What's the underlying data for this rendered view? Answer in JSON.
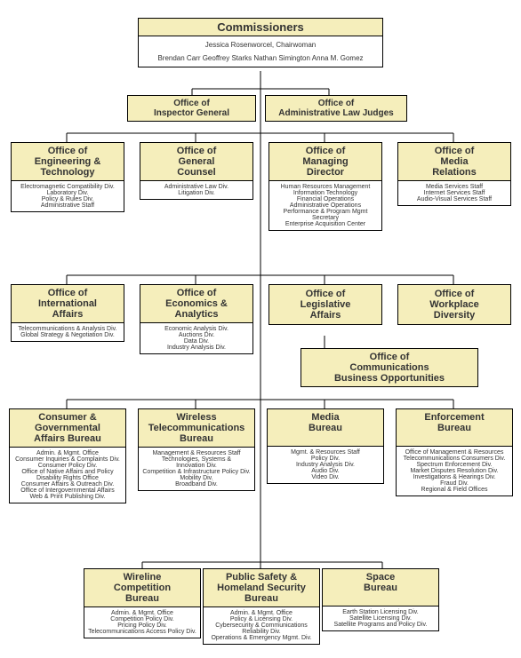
{
  "colors": {
    "header_bg": "#f5eebb",
    "body_bg": "#ffffff",
    "border": "#000000",
    "line": "#000000"
  },
  "commissioners": {
    "title": "Commissioners",
    "chair": "Jessica Rosenworcel, Chairwoman",
    "members": "Brendan Carr   Geoffrey Starks   Nathan Simington   Anna M. Gomez"
  },
  "ig": {
    "title": "Office of\nInspector General"
  },
  "alj": {
    "title": "Office of\nAdministrative Law Judges"
  },
  "row2": {
    "eng": {
      "title": "Office of\nEngineering &\nTechnology",
      "items": [
        "Electromagnetic Compatibility Div.",
        "Laboratory Div.",
        "Policy & Rules Div.",
        "Administrative Staff"
      ]
    },
    "gc": {
      "title": "Office of\nGeneral\nCounsel",
      "items": [
        "Administrative Law Div.",
        "Litigation Div."
      ]
    },
    "md": {
      "title": "Office of\nManaging\nDirector",
      "items": [
        "Human Resources Management",
        "Information Technology",
        "Financial Operations",
        "Administrative Operations",
        "Performance & Program Mgmt",
        "Secretary",
        "Enterprise Acquisition Center"
      ]
    },
    "mr": {
      "title": "Office of\nMedia\nRelations",
      "items": [
        "Media Services Staff",
        "Internet Services Staff",
        "Audio-Visual Services Staff"
      ]
    }
  },
  "row3": {
    "ia": {
      "title": "Office of\nInternational\nAffairs",
      "items": [
        "Telecommunications & Analysis Div.",
        "Global Strategy & Negotiation Div."
      ]
    },
    "ea": {
      "title": "Office of\nEconomics &\nAnalytics",
      "items": [
        "Economic Analysis Div.",
        "Auctions Div.",
        "Data Div.",
        "Industry Analysis Div."
      ]
    },
    "la": {
      "title": "Office of\nLegislative\nAffairs"
    },
    "wd": {
      "title": "Office of\nWorkplace\nDiversity"
    },
    "cbo": {
      "title": "Office of\nCommunications\nBusiness Opportunities"
    }
  },
  "row4": {
    "cga": {
      "title": "Consumer &\nGovernmental\nAffairs Bureau",
      "items": [
        "Admin. & Mgmt. Office",
        "Consumer Inquiries & Complaints Div.",
        "Consumer Policy Div.",
        "Office of Native Affairs and Policy",
        "Disability Rights Office",
        "Consumer Affairs & Outreach Div.",
        "Office of Intergovernmental Affairs",
        "Web & Print Publishing Div."
      ]
    },
    "wtb": {
      "title": "Wireless\nTelecommunications\nBureau",
      "items": [
        "Management & Resources Staff",
        "Technologies, Systems &",
        "Innovation Div.",
        "Competition & Infrastructure Policy Div.",
        "Mobility Div.",
        "Broadband Div."
      ]
    },
    "mb": {
      "title": "Media\nBureau",
      "items": [
        "Mgmt. & Resources Staff",
        "Policy Div.",
        "Industry Analysis Div.",
        "Audio Div.",
        "Video Div."
      ]
    },
    "eb": {
      "title": "Enforcement\nBureau",
      "items": [
        "Office of Management & Resources",
        "Telecommunications Consumers Div.",
        "Spectrum Enforcement Div.",
        "Market Disputes Resolution Div.",
        "Investigations & Hearings Div.",
        "Fraud Div.",
        "Regional & Field Offices"
      ]
    }
  },
  "row5": {
    "wcb": {
      "title": "Wireline\nCompetition\nBureau",
      "items": [
        "Admin. & Mgmt. Office",
        "Competition Policy Div.",
        "Pricing Policy Div.",
        "Telecommunications Access Policy Div."
      ]
    },
    "psb": {
      "title": "Public Safety &\nHomeland Security\nBureau",
      "items": [
        "Admin. & Mgmt. Office",
        "Policy & Licensing Div.",
        "Cybersecurity & Communications",
        "Reliability Div.",
        "Operations & Emergency Mgmt. Div."
      ]
    },
    "sb": {
      "title": "Space\nBureau",
      "items": [
        "Earth Station Licensing Div.",
        "Satellite Licensing Div.",
        "Satellite Programs and Policy Div."
      ]
    }
  }
}
